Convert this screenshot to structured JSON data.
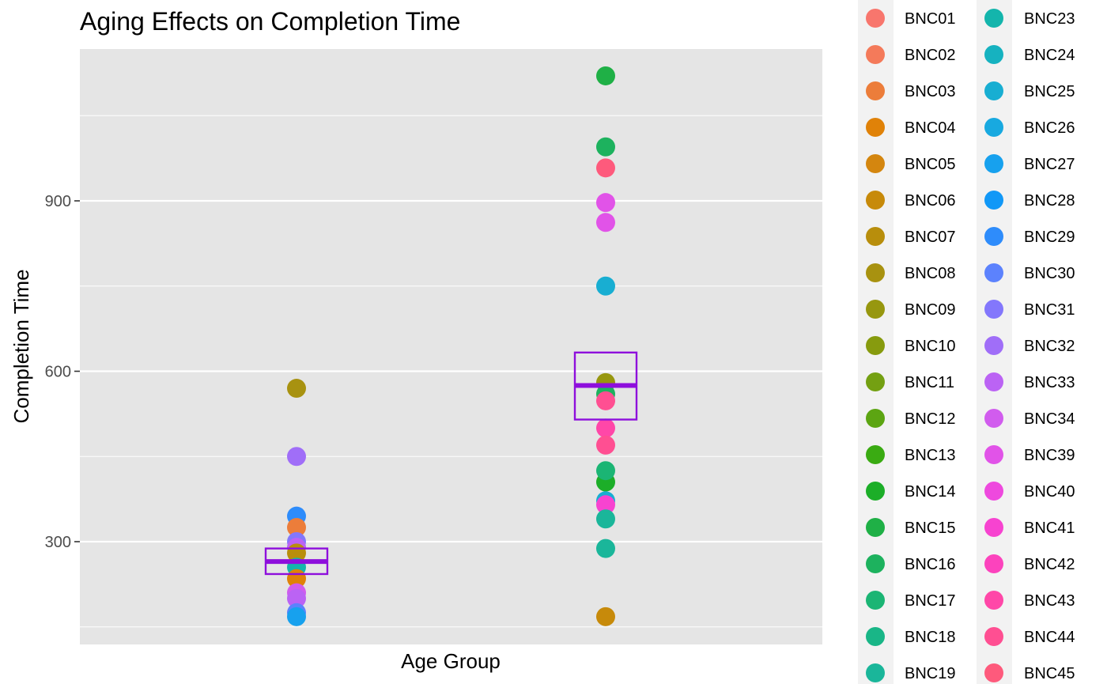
{
  "chart_data": {
    "type": "scatter",
    "title": "Aging Effects on Completion Time",
    "xlabel": "Age Group",
    "ylabel": "Completion Time",
    "ylim": [
      120,
      1150
    ],
    "yticks": [
      300,
      600,
      900
    ],
    "grid": true,
    "legend_position": "right",
    "groups": [
      {
        "points": [
          {
            "subject": "BNC08",
            "y": 570
          },
          {
            "subject": "BNC32",
            "y": 450
          },
          {
            "subject": "BNC29",
            "y": 345
          },
          {
            "subject": "BNC03",
            "y": 325
          },
          {
            "subject": "BNC31",
            "y": 300
          },
          {
            "subject": "BNC33",
            "y": 290
          },
          {
            "subject": "BNC07",
            "y": 280
          },
          {
            "subject": "BNC23",
            "y": 255
          },
          {
            "subject": "BNC04",
            "y": 235
          },
          {
            "subject": "BNC34",
            "y": 210
          },
          {
            "subject": "BNC33",
            "y": 200
          },
          {
            "subject": "BNC30",
            "y": 175
          },
          {
            "subject": "BNC27",
            "y": 168
          }
        ],
        "mean": 265,
        "se_low": 243,
        "se_high": 288
      },
      {
        "points": [
          {
            "subject": "BNC15",
            "y": 1120
          },
          {
            "subject": "BNC16",
            "y": 995
          },
          {
            "subject": "BNC45",
            "y": 958
          },
          {
            "subject": "BNC39",
            "y": 897
          },
          {
            "subject": "BNC39",
            "y": 862
          },
          {
            "subject": "BNC25",
            "y": 750
          },
          {
            "subject": "BNC09",
            "y": 580
          },
          {
            "subject": "BNC16",
            "y": 560
          },
          {
            "subject": "BNC44",
            "y": 548
          },
          {
            "subject": "BNC43",
            "y": 500
          },
          {
            "subject": "BNC44",
            "y": 470
          },
          {
            "subject": "BNC14",
            "y": 405
          },
          {
            "subject": "BNC17",
            "y": 425
          },
          {
            "subject": "BNC25",
            "y": 372
          },
          {
            "subject": "BNC41",
            "y": 365
          },
          {
            "subject": "BNC19",
            "y": 340
          },
          {
            "subject": "BNC19",
            "y": 288
          },
          {
            "subject": "BNC06",
            "y": 168
          }
        ],
        "mean": 575,
        "se_low": 515,
        "se_high": 633
      }
    ],
    "summary_color": "#8e0fdc",
    "legend": [
      {
        "label": "BNC01",
        "color": "#F8766D"
      },
      {
        "label": "BNC02",
        "color": "#F47A5A"
      },
      {
        "label": "BNC03",
        "color": "#EC7D3A"
      },
      {
        "label": "BNC04",
        "color": "#E08208"
      },
      {
        "label": "BNC05",
        "color": "#D4860F"
      },
      {
        "label": "BNC06",
        "color": "#C78A0A"
      },
      {
        "label": "BNC07",
        "color": "#B88E0C"
      },
      {
        "label": "BNC08",
        "color": "#A89210"
      },
      {
        "label": "BNC09",
        "color": "#97970F"
      },
      {
        "label": "BNC10",
        "color": "#879B0E"
      },
      {
        "label": "BNC11",
        "color": "#74A012"
      },
      {
        "label": "BNC12",
        "color": "#5CA512"
      },
      {
        "label": "BNC13",
        "color": "#3AAB12"
      },
      {
        "label": "BNC14",
        "color": "#1CAE28"
      },
      {
        "label": "BNC15",
        "color": "#1FB046"
      },
      {
        "label": "BNC16",
        "color": "#1DB25E"
      },
      {
        "label": "BNC17",
        "color": "#1BB574"
      },
      {
        "label": "BNC18",
        "color": "#19B687"
      },
      {
        "label": "BNC19",
        "color": "#1AB69A"
      },
      {
        "label": "BNC23",
        "color": "#14B5AC"
      },
      {
        "label": "BNC24",
        "color": "#16B2C0"
      },
      {
        "label": "BNC25",
        "color": "#18AED2"
      },
      {
        "label": "BNC26",
        "color": "#18A9E0"
      },
      {
        "label": "BNC27",
        "color": "#17A1EE"
      },
      {
        "label": "BNC28",
        "color": "#1198F7"
      },
      {
        "label": "BNC29",
        "color": "#2E8CFB"
      },
      {
        "label": "BNC30",
        "color": "#5C82FD"
      },
      {
        "label": "BNC31",
        "color": "#8377FC"
      },
      {
        "label": "BNC32",
        "color": "#A06EF8"
      },
      {
        "label": "BNC33",
        "color": "#BB63F4"
      },
      {
        "label": "BNC34",
        "color": "#D15CEE"
      },
      {
        "label": "BNC39",
        "color": "#E153E8"
      },
      {
        "label": "BNC40",
        "color": "#EE49DE"
      },
      {
        "label": "BNC41",
        "color": "#F743D0"
      },
      {
        "label": "BNC42",
        "color": "#FC43BD"
      },
      {
        "label": "BNC43",
        "color": "#FF47A8"
      },
      {
        "label": "BNC44",
        "color": "#FF4F92"
      },
      {
        "label": "BNC45",
        "color": "#FE5A7C"
      }
    ]
  }
}
